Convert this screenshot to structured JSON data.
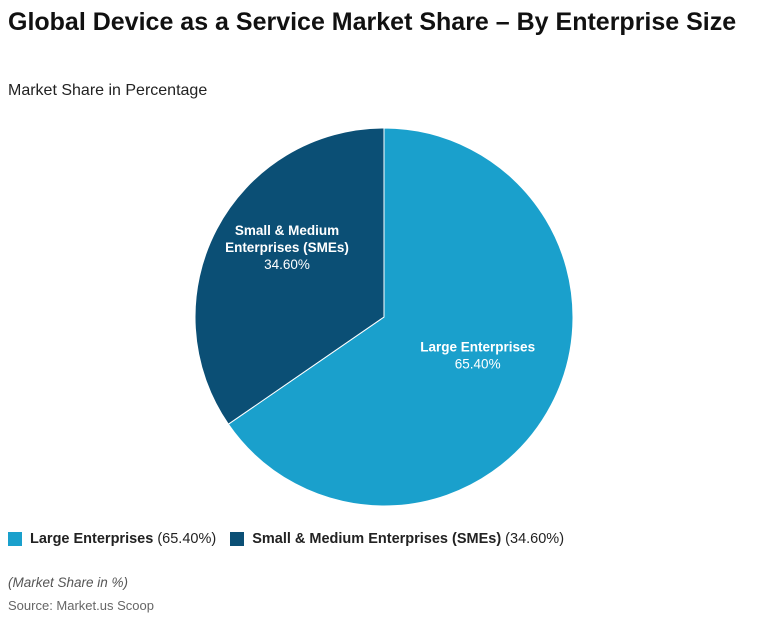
{
  "title": "Global Device as a Service Market Share – By Enterprise Size",
  "subtitle": "Market Share in Percentage",
  "footer": {
    "note": "(Market Share in %)",
    "source": "Source: Market.us Scoop"
  },
  "chart_data": {
    "type": "pie",
    "title": "Global Device as a Service Market Share – By Enterprise Size",
    "subtitle": "Market Share in Percentage",
    "slices": [
      {
        "name": "Large Enterprises",
        "value": 65.4,
        "label": "65.40%",
        "color": "#1AA0CC",
        "label_lines": [
          "Large Enterprises"
        ]
      },
      {
        "name": "Small & Medium Enterprises (SMEs)",
        "value": 34.6,
        "label": "34.60%",
        "color": "#0B4F75",
        "label_lines": [
          "Small & Medium",
          "Enterprises (SMEs)"
        ]
      }
    ],
    "legend_placement": "bottom-left",
    "start_angle": "12 o'clock, clockwise"
  }
}
